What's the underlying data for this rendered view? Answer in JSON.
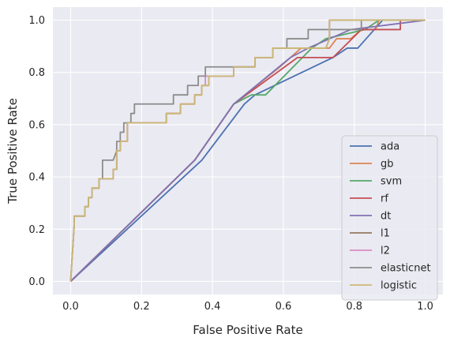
{
  "chart_data": {
    "type": "line",
    "title": "",
    "xlabel": "False Positive Rate",
    "ylabel": "True Positive Rate",
    "xlim": [
      -0.05,
      1.05
    ],
    "ylim": [
      -0.05,
      1.05
    ],
    "xticks": [
      0.0,
      0.2,
      0.4,
      0.6,
      0.8,
      1.0
    ],
    "yticks": [
      0.0,
      0.2,
      0.4,
      0.6,
      0.8,
      1.0
    ],
    "xtick_labels": [
      "0.0",
      "0.2",
      "0.4",
      "0.6",
      "0.8",
      "1.0"
    ],
    "ytick_labels": [
      "0.0",
      "0.2",
      "0.4",
      "0.6",
      "0.8",
      "1.0"
    ],
    "grid": true,
    "background": "#eaeaf2",
    "legend_position": "lower right",
    "series": [
      {
        "name": "ada",
        "color": "#4c72b0",
        "points": [
          [
            0,
            0
          ],
          [
            0.37,
            0.464
          ],
          [
            0.49,
            0.679
          ],
          [
            0.52,
            0.714
          ],
          [
            0.74,
            0.857
          ],
          [
            0.78,
            0.893
          ],
          [
            0.81,
            0.893
          ],
          [
            0.88,
            1.0
          ],
          [
            1.0,
            1.0
          ]
        ]
      },
      {
        "name": "gb",
        "color": "#dd8452",
        "points": [
          [
            0,
            0
          ],
          [
            0.35,
            0.464
          ],
          [
            0.46,
            0.679
          ],
          [
            0.59,
            0.821
          ],
          [
            0.65,
            0.893
          ],
          [
            0.73,
            0.893
          ],
          [
            0.75,
            0.929
          ],
          [
            0.79,
            0.929
          ],
          [
            0.82,
            0.964
          ],
          [
            0.86,
            0.964
          ],
          [
            0.87,
            1.0
          ],
          [
            1.0,
            1.0
          ]
        ]
      },
      {
        "name": "svm",
        "color": "#55a868",
        "points": [
          [
            0,
            0
          ],
          [
            0.35,
            0.464
          ],
          [
            0.46,
            0.679
          ],
          [
            0.51,
            0.714
          ],
          [
            0.55,
            0.714
          ],
          [
            0.68,
            0.893
          ],
          [
            0.72,
            0.929
          ],
          [
            0.83,
            0.964
          ],
          [
            0.87,
            1.0
          ],
          [
            1.0,
            1.0
          ]
        ]
      },
      {
        "name": "rf",
        "color": "#c44e52",
        "points": [
          [
            0,
            0
          ],
          [
            0.35,
            0.464
          ],
          [
            0.46,
            0.679
          ],
          [
            0.64,
            0.857
          ],
          [
            0.74,
            0.857
          ],
          [
            0.82,
            0.964
          ],
          [
            0.93,
            0.964
          ],
          [
            0.93,
            1.0
          ],
          [
            1.0,
            1.0
          ]
        ]
      },
      {
        "name": "dt",
        "color": "#8172b3",
        "points": [
          [
            0,
            0
          ],
          [
            0.35,
            0.464
          ],
          [
            0.46,
            0.679
          ],
          [
            0.62,
            0.857
          ],
          [
            0.67,
            0.893
          ],
          [
            0.79,
            0.964
          ],
          [
            1.0,
            1.0
          ]
        ]
      },
      {
        "name": "l1",
        "color": "#937860",
        "points": [
          [
            0,
            0
          ],
          [
            0.01,
            0.214
          ],
          [
            0.01,
            0.25
          ],
          [
            0.04,
            0.25
          ],
          [
            0.04,
            0.286
          ],
          [
            0.05,
            0.286
          ],
          [
            0.05,
            0.321
          ],
          [
            0.06,
            0.321
          ],
          [
            0.06,
            0.357
          ],
          [
            0.07,
            0.357
          ],
          [
            0.08,
            0.357
          ],
          [
            0.08,
            0.393
          ],
          [
            0.12,
            0.393
          ],
          [
            0.12,
            0.429
          ],
          [
            0.13,
            0.429
          ],
          [
            0.13,
            0.464
          ],
          [
            0.13,
            0.5
          ],
          [
            0.14,
            0.5
          ],
          [
            0.14,
            0.536
          ],
          [
            0.16,
            0.536
          ],
          [
            0.16,
            0.607
          ],
          [
            0.27,
            0.607
          ],
          [
            0.27,
            0.643
          ],
          [
            0.31,
            0.643
          ],
          [
            0.31,
            0.679
          ],
          [
            0.35,
            0.679
          ],
          [
            0.35,
            0.714
          ],
          [
            0.37,
            0.714
          ],
          [
            0.37,
            0.75
          ],
          [
            0.39,
            0.75
          ],
          [
            0.39,
            0.786
          ],
          [
            0.46,
            0.786
          ],
          [
            0.46,
            0.821
          ],
          [
            0.52,
            0.821
          ],
          [
            0.52,
            0.857
          ],
          [
            0.57,
            0.857
          ],
          [
            0.57,
            0.893
          ],
          [
            0.72,
            0.893
          ],
          [
            0.73,
            0.929
          ],
          [
            0.73,
            1.0
          ],
          [
            1.0,
            1.0
          ]
        ]
      },
      {
        "name": "l2",
        "color": "#da8bc3",
        "points": [
          [
            0,
            0
          ],
          [
            0.01,
            0.214
          ],
          [
            0.01,
            0.25
          ],
          [
            0.04,
            0.25
          ],
          [
            0.04,
            0.286
          ],
          [
            0.05,
            0.286
          ],
          [
            0.05,
            0.321
          ],
          [
            0.06,
            0.321
          ],
          [
            0.06,
            0.357
          ],
          [
            0.07,
            0.357
          ],
          [
            0.08,
            0.357
          ],
          [
            0.08,
            0.393
          ],
          [
            0.12,
            0.393
          ],
          [
            0.12,
            0.429
          ],
          [
            0.13,
            0.429
          ],
          [
            0.13,
            0.464
          ],
          [
            0.13,
            0.5
          ],
          [
            0.14,
            0.5
          ],
          [
            0.14,
            0.536
          ],
          [
            0.16,
            0.536
          ],
          [
            0.16,
            0.607
          ],
          [
            0.27,
            0.607
          ],
          [
            0.27,
            0.643
          ],
          [
            0.31,
            0.643
          ],
          [
            0.31,
            0.679
          ],
          [
            0.35,
            0.679
          ],
          [
            0.35,
            0.714
          ],
          [
            0.37,
            0.714
          ],
          [
            0.37,
            0.75
          ],
          [
            0.38,
            0.75
          ],
          [
            0.38,
            0.786
          ],
          [
            0.46,
            0.786
          ],
          [
            0.46,
            0.821
          ],
          [
            0.52,
            0.821
          ],
          [
            0.52,
            0.857
          ],
          [
            0.57,
            0.857
          ],
          [
            0.57,
            0.893
          ],
          [
            0.72,
            0.893
          ],
          [
            0.73,
            0.929
          ],
          [
            0.73,
            1.0
          ],
          [
            1.0,
            1.0
          ]
        ]
      },
      {
        "name": "elasticnet",
        "color": "#8c8c8c",
        "points": [
          [
            0,
            0
          ],
          [
            0.01,
            0.214
          ],
          [
            0.01,
            0.25
          ],
          [
            0.04,
            0.25
          ],
          [
            0.04,
            0.286
          ],
          [
            0.05,
            0.286
          ],
          [
            0.05,
            0.321
          ],
          [
            0.06,
            0.321
          ],
          [
            0.06,
            0.357
          ],
          [
            0.08,
            0.357
          ],
          [
            0.08,
            0.393
          ],
          [
            0.09,
            0.393
          ],
          [
            0.09,
            0.429
          ],
          [
            0.09,
            0.464
          ],
          [
            0.12,
            0.464
          ],
          [
            0.13,
            0.5
          ],
          [
            0.13,
            0.536
          ],
          [
            0.14,
            0.536
          ],
          [
            0.14,
            0.571
          ],
          [
            0.15,
            0.571
          ],
          [
            0.15,
            0.607
          ],
          [
            0.17,
            0.607
          ],
          [
            0.17,
            0.643
          ],
          [
            0.18,
            0.643
          ],
          [
            0.18,
            0.679
          ],
          [
            0.29,
            0.679
          ],
          [
            0.29,
            0.714
          ],
          [
            0.33,
            0.714
          ],
          [
            0.33,
            0.75
          ],
          [
            0.36,
            0.75
          ],
          [
            0.36,
            0.786
          ],
          [
            0.38,
            0.786
          ],
          [
            0.38,
            0.821
          ],
          [
            0.52,
            0.821
          ],
          [
            0.52,
            0.857
          ],
          [
            0.57,
            0.857
          ],
          [
            0.57,
            0.893
          ],
          [
            0.61,
            0.893
          ],
          [
            0.61,
            0.929
          ],
          [
            0.67,
            0.929
          ],
          [
            0.67,
            0.964
          ],
          [
            0.82,
            0.964
          ],
          [
            0.82,
            1.0
          ],
          [
            1.0,
            1.0
          ]
        ]
      },
      {
        "name": "logistic",
        "color": "#ccb974",
        "points": [
          [
            0,
            0
          ],
          [
            0.01,
            0.214
          ],
          [
            0.01,
            0.25
          ],
          [
            0.04,
            0.25
          ],
          [
            0.04,
            0.286
          ],
          [
            0.05,
            0.286
          ],
          [
            0.05,
            0.321
          ],
          [
            0.06,
            0.321
          ],
          [
            0.06,
            0.357
          ],
          [
            0.07,
            0.357
          ],
          [
            0.08,
            0.357
          ],
          [
            0.08,
            0.393
          ],
          [
            0.12,
            0.393
          ],
          [
            0.12,
            0.429
          ],
          [
            0.13,
            0.429
          ],
          [
            0.13,
            0.464
          ],
          [
            0.13,
            0.5
          ],
          [
            0.14,
            0.5
          ],
          [
            0.14,
            0.536
          ],
          [
            0.16,
            0.536
          ],
          [
            0.16,
            0.607
          ],
          [
            0.27,
            0.607
          ],
          [
            0.27,
            0.643
          ],
          [
            0.31,
            0.643
          ],
          [
            0.31,
            0.679
          ],
          [
            0.35,
            0.679
          ],
          [
            0.35,
            0.714
          ],
          [
            0.37,
            0.714
          ],
          [
            0.37,
            0.75
          ],
          [
            0.39,
            0.75
          ],
          [
            0.39,
            0.786
          ],
          [
            0.46,
            0.786
          ],
          [
            0.46,
            0.821
          ],
          [
            0.52,
            0.821
          ],
          [
            0.52,
            0.857
          ],
          [
            0.57,
            0.857
          ],
          [
            0.57,
            0.893
          ],
          [
            0.72,
            0.893
          ],
          [
            0.73,
            0.929
          ],
          [
            0.73,
            1.0
          ],
          [
            1.0,
            1.0
          ]
        ]
      }
    ]
  }
}
